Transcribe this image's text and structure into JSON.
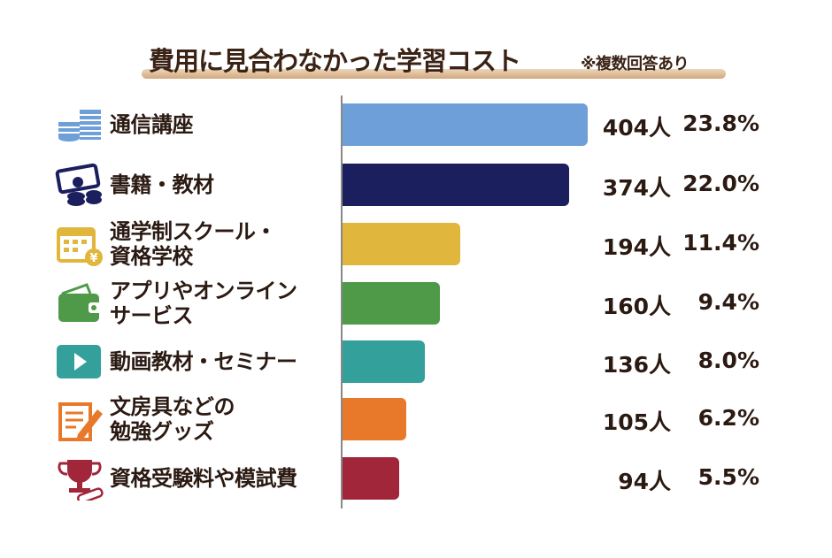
{
  "chart_data": {
    "type": "bar",
    "orientation": "horizontal",
    "title": "費用に見合わなかった学習コスト",
    "subtitle": "※複数回答あり",
    "categories": [
      "通信講座",
      "書籍・教材",
      "通学制スクール・\n資格学校",
      "アプリやオンライン\nサービス",
      "動画教材・セミナー",
      "文房具などの\n勉強グッズ",
      "資格受験料や模試費"
    ],
    "values": [
      404,
      374,
      194,
      160,
      136,
      105,
      94
    ],
    "count_labels": [
      "404人",
      "374人",
      "194人",
      "160人",
      "136人",
      "105人",
      "94人"
    ],
    "percent_labels": [
      "23.8%",
      "22.0%",
      "11.4%",
      "9.4%",
      "8.0%",
      "6.2%",
      "5.5%"
    ],
    "colors": [
      "#6f9fd8",
      "#1b1f5e",
      "#e0b63c",
      "#4e9a48",
      "#34a09c",
      "#e8792b",
      "#a2263a"
    ],
    "icons": [
      "coin-stack-icon",
      "money-coins-icon",
      "calendar-yen-icon",
      "wallet-icon",
      "video-play-icon",
      "notepad-pencil-icon",
      "trophy-certificate-icon"
    ],
    "xlim": [
      0,
      404
    ],
    "grid": false,
    "legend": "none"
  }
}
